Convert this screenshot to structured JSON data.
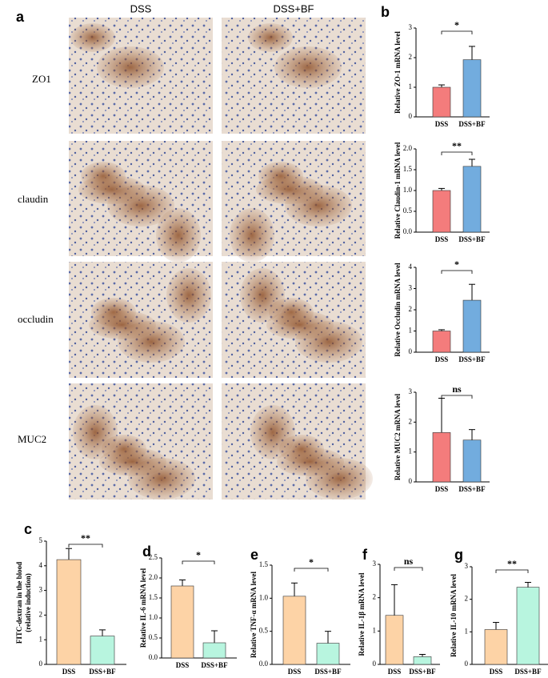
{
  "figure": {
    "panel_a": "a",
    "panel_b": "b",
    "columns": [
      "DSS",
      "DSS+BF"
    ],
    "rows": [
      "ZO1",
      "claudin",
      "occludin",
      "MUC2"
    ]
  },
  "chart_data": [
    {
      "type": "bar",
      "ylabel": [
        "Relative ZO-1 mRNA level"
      ],
      "categories": [
        "DSS",
        "DSS+BF"
      ],
      "values": [
        1.0,
        1.93
      ],
      "errors": [
        0.08,
        0.45
      ],
      "colors": [
        "#f47c7c",
        "#72acde"
      ],
      "ylim": [
        0,
        3
      ],
      "yticks": [
        0,
        1,
        2,
        3
      ],
      "annotation": "*"
    },
    {
      "type": "bar",
      "ylabel": [
        "Relative Claudin-1 mRNA level"
      ],
      "categories": [
        "DSS",
        "DSS+BF"
      ],
      "values": [
        1.0,
        1.58
      ],
      "errors": [
        0.05,
        0.17
      ],
      "colors": [
        "#f47c7c",
        "#72acde"
      ],
      "ylim": [
        0,
        2
      ],
      "yticks": [
        {
          "value": 0,
          "label": "0.0"
        },
        {
          "value": 0.5,
          "label": "0.5"
        },
        {
          "value": 1,
          "label": "1.0"
        },
        {
          "value": 1.5,
          "label": "1.5"
        },
        {
          "value": 2,
          "label": "2.0"
        }
      ],
      "annotation": "**"
    },
    {
      "type": "bar",
      "ylabel": [
        "Relative Occludin mRNA level"
      ],
      "categories": [
        "DSS",
        "DSS+BF"
      ],
      "values": [
        1.0,
        2.45
      ],
      "errors": [
        0.06,
        0.75
      ],
      "colors": [
        "#f47c7c",
        "#72acde"
      ],
      "ylim": [
        0,
        4
      ],
      "yticks": [
        0,
        1,
        2,
        3,
        4
      ],
      "annotation": "*"
    },
    {
      "type": "bar",
      "ylabel": [
        "Relative MUC2 mRNA level"
      ],
      "categories": [
        "DSS",
        "DSS+BF"
      ],
      "values": [
        1.65,
        1.4
      ],
      "errors": [
        1.15,
        0.35
      ],
      "colors": [
        "#f47c7c",
        "#72acde"
      ],
      "ylim": [
        0,
        3
      ],
      "yticks": [
        0,
        1,
        2,
        3
      ],
      "annotation": "ns"
    },
    {
      "type": "bar",
      "panel": "c",
      "ylabel": [
        "FITC-dextran in the blood",
        "(relative induction)"
      ],
      "categories": [
        "DSS",
        "DSS+BF"
      ],
      "values": [
        4.25,
        1.15
      ],
      "errors": [
        0.45,
        0.25
      ],
      "colors": [
        "#fdd3a6",
        "#b8f5df"
      ],
      "ylim": [
        0,
        5
      ],
      "yticks": [
        0,
        1,
        2,
        3,
        4,
        5
      ],
      "annotation": "**"
    },
    {
      "type": "bar",
      "panel": "d",
      "ylabel": [
        "Relative IL-6 mRNA level"
      ],
      "categories": [
        "DSS",
        "DSS+BF"
      ],
      "values": [
        1.8,
        0.38
      ],
      "errors": [
        0.15,
        0.3
      ],
      "colors": [
        "#fdd3a6",
        "#b8f5df"
      ],
      "ylim": [
        0,
        2.5
      ],
      "yticks": [
        {
          "value": 0,
          "label": "0.0"
        },
        {
          "value": 0.5,
          "label": "0.5"
        },
        {
          "value": 1,
          "label": "1.0"
        },
        {
          "value": 1.5,
          "label": "1.5"
        },
        {
          "value": 2,
          "label": "2.0"
        },
        {
          "value": 2.5,
          "label": "2.5"
        }
      ],
      "annotation": "*"
    },
    {
      "type": "bar",
      "panel": "e",
      "ylabel": [
        "Relative TNF-α mRNA level"
      ],
      "categories": [
        "DSS",
        "DSS+BF"
      ],
      "values": [
        1.03,
        0.32
      ],
      "errors": [
        0.2,
        0.18
      ],
      "colors": [
        "#fdd3a6",
        "#b8f5df"
      ],
      "ylim": [
        0,
        1.5
      ],
      "yticks": [
        {
          "value": 0,
          "label": "0.0"
        },
        {
          "value": 0.5,
          "label": "0.5"
        },
        {
          "value": 1,
          "label": "1.0"
        },
        {
          "value": 1.5,
          "label": "1.5"
        }
      ],
      "annotation": "*"
    },
    {
      "type": "bar",
      "panel": "f",
      "ylabel": [
        "Relative IL-1β mRNA level"
      ],
      "categories": [
        "DSS",
        "DSS+BF"
      ],
      "values": [
        1.47,
        0.23
      ],
      "errors": [
        0.92,
        0.07
      ],
      "colors": [
        "#fdd3a6",
        "#b8f5df"
      ],
      "ylim": [
        0,
        3
      ],
      "yticks": [
        0,
        1,
        2,
        3
      ],
      "annotation": "ns"
    },
    {
      "type": "bar",
      "panel": "g",
      "ylabel": [
        "Relative IL-10 mRNA level"
      ],
      "categories": [
        "DSS",
        "DSS+BF"
      ],
      "values": [
        1.07,
        2.37
      ],
      "errors": [
        0.22,
        0.15
      ],
      "colors": [
        "#fdd3a6",
        "#b8f5df"
      ],
      "ylim": [
        0,
        3
      ],
      "yticks": [
        0,
        1,
        2,
        3
      ],
      "annotation": "**"
    }
  ]
}
